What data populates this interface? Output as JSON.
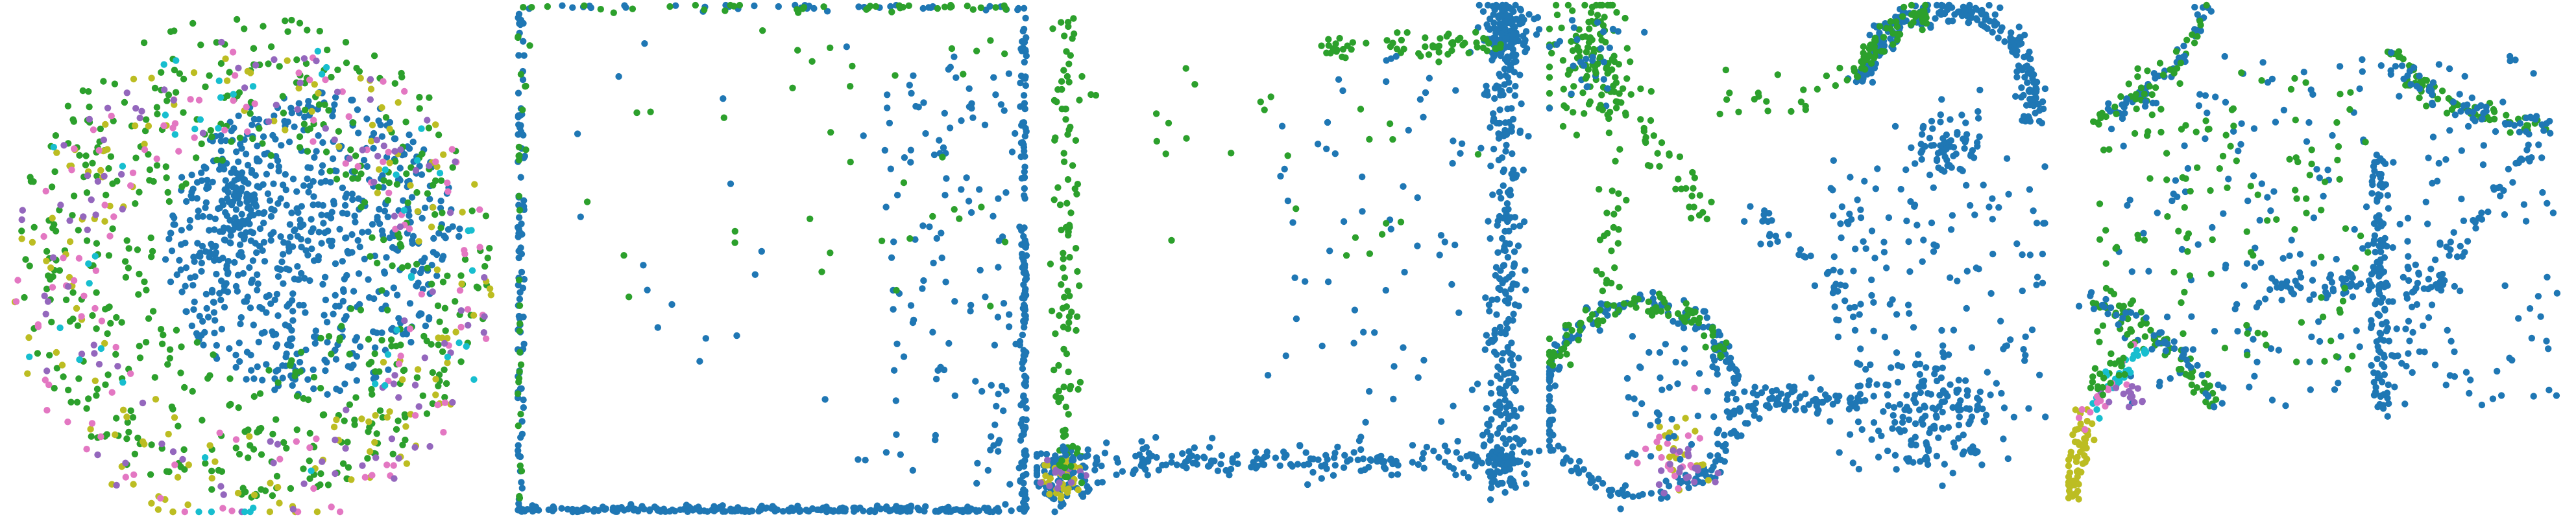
{
  "chart_data": [
    {
      "type": "scatter",
      "title": "",
      "xlabel": "",
      "ylabel": "",
      "axes": "hidden",
      "grid": false,
      "legend": "none",
      "shape": "filled disk",
      "series_colors": {
        "blue": "#1f77b4",
        "green": "#2ca02c",
        "olive": "#bcbd22",
        "pink": "#e377c2",
        "purple": "#9467bd",
        "cyan": "#17becf"
      },
      "clusters": [
        {
          "color": "blue",
          "kind": "disk",
          "cx": 0.62,
          "cy": 0.47,
          "r": 0.3,
          "n": 650
        },
        {
          "color": "green",
          "kind": "annulus",
          "cx": 0.5,
          "cy": 0.5,
          "r0": 0.2,
          "r1": 0.48,
          "n": 520
        },
        {
          "color": "olive",
          "kind": "annulus",
          "cx": 0.5,
          "cy": 0.55,
          "r0": 0.3,
          "r1": 0.49,
          "n": 150
        },
        {
          "color": "pink",
          "kind": "annulus",
          "cx": 0.5,
          "cy": 0.55,
          "r0": 0.3,
          "r1": 0.49,
          "n": 120
        },
        {
          "color": "purple",
          "kind": "annulus",
          "cx": 0.5,
          "cy": 0.55,
          "r0": 0.3,
          "r1": 0.49,
          "n": 110
        },
        {
          "color": "cyan",
          "kind": "annulus",
          "cx": 0.5,
          "cy": 0.55,
          "r0": 0.3,
          "r1": 0.49,
          "n": 50
        },
        {
          "color": "blue",
          "kind": "blob",
          "cx": 0.47,
          "cy": 0.42,
          "sx": 0.03,
          "sy": 0.07,
          "n": 90
        }
      ]
    },
    {
      "type": "scatter",
      "title": "",
      "xlabel": "",
      "ylabel": "",
      "axes": "hidden",
      "grid": false,
      "legend": "none",
      "clusters": [
        {
          "color": "blue",
          "kind": "edge",
          "side": "bottom",
          "n": 260
        },
        {
          "color": "blue",
          "kind": "edge",
          "side": "right",
          "n": 160
        },
        {
          "color": "blue",
          "kind": "edge",
          "side": "left",
          "n": 90
        },
        {
          "color": "blue",
          "kind": "edge",
          "side": "top",
          "n": 40
        },
        {
          "color": "green",
          "kind": "edge",
          "side": "top",
          "n": 40
        },
        {
          "color": "green",
          "kind": "edge",
          "side": "left",
          "n": 30
        },
        {
          "color": "blue",
          "kind": "box",
          "x0": 0.72,
          "x1": 0.98,
          "y0": 0.1,
          "y1": 0.95,
          "n": 120
        },
        {
          "color": "green",
          "kind": "box",
          "x0": 0.55,
          "x1": 0.98,
          "y0": 0.05,
          "y1": 0.6,
          "n": 25
        },
        {
          "color": "green",
          "kind": "box",
          "x0": 0.05,
          "x1": 0.6,
          "y0": 0.05,
          "y1": 0.6,
          "n": 12
        },
        {
          "color": "blue",
          "kind": "box",
          "x0": 0.05,
          "x1": 0.7,
          "y0": 0.05,
          "y1": 0.95,
          "n": 20
        }
      ]
    },
    {
      "type": "scatter",
      "title": "",
      "xlabel": "",
      "ylabel": "",
      "axes": "hidden",
      "grid": false,
      "legend": "none",
      "clusters": [
        {
          "color": "blue",
          "kind": "blob",
          "cx": 0.935,
          "cy": 0.05,
          "sx": 0.025,
          "sy": 0.03,
          "n": 130
        },
        {
          "color": "blue",
          "kind": "blob",
          "cx": 0.05,
          "cy": 0.93,
          "sx": 0.03,
          "sy": 0.03,
          "n": 90
        },
        {
          "color": "olive",
          "kind": "blob",
          "cx": 0.05,
          "cy": 0.93,
          "sx": 0.02,
          "sy": 0.02,
          "n": 30
        },
        {
          "color": "purple",
          "kind": "blob",
          "cx": 0.05,
          "cy": 0.93,
          "sx": 0.02,
          "sy": 0.02,
          "n": 15
        },
        {
          "color": "blue",
          "kind": "blob",
          "cx": 0.93,
          "cy": 0.9,
          "sx": 0.03,
          "sy": 0.03,
          "n": 60
        },
        {
          "color": "blue",
          "kind": "vline",
          "x": 0.93,
          "y0": 0.05,
          "y1": 0.95,
          "w": 0.035,
          "n": 260
        },
        {
          "color": "green",
          "kind": "vline",
          "x": 0.06,
          "y0": 0.02,
          "y1": 0.95,
          "w": 0.03,
          "n": 110
        },
        {
          "color": "blue",
          "kind": "hline",
          "y": 0.9,
          "x0": 0.05,
          "x1": 0.95,
          "w": 0.035,
          "n": 200
        },
        {
          "color": "green",
          "kind": "hline",
          "y": 0.08,
          "x0": 0.55,
          "x1": 0.93,
          "w": 0.03,
          "n": 60
        },
        {
          "color": "blue",
          "kind": "box",
          "x0": 0.45,
          "x1": 0.9,
          "y0": 0.1,
          "y1": 0.85,
          "n": 70
        },
        {
          "color": "green",
          "kind": "box",
          "x0": 0.08,
          "x1": 0.9,
          "y0": 0.05,
          "y1": 0.5,
          "n": 30
        }
      ]
    },
    {
      "type": "scatter",
      "title": "",
      "xlabel": "",
      "ylabel": "",
      "axes": "hidden",
      "grid": false,
      "legend": "none",
      "clusters": [
        {
          "color": "blue",
          "kind": "ring",
          "cx": 0.78,
          "cy": 0.18,
          "r": 0.17,
          "a0": 3.3,
          "a1": 6.6,
          "w": 0.012,
          "n": 240
        },
        {
          "color": "green",
          "kind": "ring",
          "cx": 0.78,
          "cy": 0.18,
          "r": 0.17,
          "a0": 3.3,
          "a1": 4.5,
          "w": 0.012,
          "n": 60
        },
        {
          "color": "blue",
          "kind": "ring",
          "cx": 0.18,
          "cy": 0.78,
          "r": 0.19,
          "a0": 0,
          "a1": 6.283,
          "w": 0.012,
          "n": 240
        },
        {
          "color": "green",
          "kind": "ring",
          "cx": 0.18,
          "cy": 0.78,
          "r": 0.19,
          "a0": 3.5,
          "a1": 5.8,
          "w": 0.012,
          "n": 80
        },
        {
          "color": "olive",
          "kind": "blob",
          "cx": 0.25,
          "cy": 0.88,
          "sx": 0.03,
          "sy": 0.03,
          "n": 20
        },
        {
          "color": "pink",
          "kind": "blob",
          "cx": 0.25,
          "cy": 0.88,
          "sx": 0.04,
          "sy": 0.04,
          "n": 18
        },
        {
          "color": "purple",
          "kind": "blob",
          "cx": 0.26,
          "cy": 0.92,
          "sx": 0.03,
          "sy": 0.02,
          "n": 20
        },
        {
          "color": "blue",
          "kind": "box",
          "x0": 0.15,
          "x1": 0.33,
          "y0": 0.65,
          "y1": 0.9,
          "n": 40
        },
        {
          "color": "blue",
          "kind": "blob",
          "cx": 0.78,
          "cy": 0.27,
          "sx": 0.04,
          "sy": 0.03,
          "n": 70
        },
        {
          "color": "blue",
          "kind": "blob",
          "cx": 0.75,
          "cy": 0.8,
          "sx": 0.06,
          "sy": 0.05,
          "n": 120
        },
        {
          "color": "blue",
          "kind": "diag",
          "x0": 0.38,
          "y0": 0.78,
          "x1": 0.62,
          "y1": 0.78,
          "w": 0.03,
          "n": 70
        },
        {
          "color": "blue",
          "kind": "box",
          "x0": 0.55,
          "x1": 0.98,
          "y0": 0.3,
          "y1": 0.92,
          "n": 180
        },
        {
          "color": "green",
          "kind": "blob",
          "cx": 0.08,
          "cy": 0.1,
          "sx": 0.04,
          "sy": 0.06,
          "n": 110
        },
        {
          "color": "blue",
          "kind": "blob",
          "cx": 0.08,
          "cy": 0.1,
          "sx": 0.04,
          "sy": 0.06,
          "n": 30
        },
        {
          "color": "green",
          "kind": "diag",
          "x0": 0.08,
          "y0": 0.1,
          "x1": 0.3,
          "y1": 0.4,
          "w": 0.04,
          "n": 50
        },
        {
          "color": "green",
          "kind": "vline",
          "x": 0.12,
          "y0": 0.2,
          "y1": 0.6,
          "w": 0.03,
          "n": 30
        },
        {
          "color": "blue",
          "kind": "diag",
          "x0": 0.4,
          "y0": 0.4,
          "x1": 0.62,
          "y1": 0.62,
          "w": 0.04,
          "n": 40
        },
        {
          "color": "green",
          "kind": "box",
          "x0": 0.3,
          "x1": 0.6,
          "y0": 0.12,
          "y1": 0.22,
          "n": 20
        }
      ]
    },
    {
      "type": "scatter",
      "title": "",
      "xlabel": "",
      "ylabel": "",
      "axes": "hidden",
      "grid": false,
      "legend": "none",
      "clusters": [
        {
          "color": "blue",
          "kind": "arc",
          "x0": 0.04,
          "y0": 0.22,
          "cx": 0.18,
          "cy": 0.2,
          "x1": 0.28,
          "y1": 0.0,
          "w": 0.01,
          "n": 50
        },
        {
          "color": "green",
          "kind": "arc",
          "x0": 0.04,
          "y0": 0.22,
          "cx": 0.18,
          "cy": 0.2,
          "x1": 0.28,
          "y1": 0.0,
          "w": 0.01,
          "n": 30
        },
        {
          "color": "green",
          "kind": "arc",
          "x0": 0.64,
          "y0": 0.09,
          "cx": 0.72,
          "cy": 0.22,
          "x1": 0.96,
          "y1": 0.24,
          "w": 0.012,
          "n": 70
        },
        {
          "color": "blue",
          "kind": "arc",
          "x0": 0.64,
          "y0": 0.09,
          "cx": 0.72,
          "cy": 0.22,
          "x1": 0.96,
          "y1": 0.24,
          "w": 0.012,
          "n": 50
        },
        {
          "color": "blue",
          "kind": "arc",
          "x0": 0.96,
          "y0": 0.24,
          "cx": 0.75,
          "cy": 0.45,
          "x1": 0.62,
          "y1": 0.82,
          "w": 0.012,
          "n": 60
        },
        {
          "color": "green",
          "kind": "arc",
          "x0": 0.04,
          "y0": 0.58,
          "cx": 0.18,
          "cy": 0.62,
          "x1": 0.3,
          "y1": 0.8,
          "w": 0.012,
          "n": 60
        },
        {
          "color": "blue",
          "kind": "arc",
          "x0": 0.04,
          "y0": 0.58,
          "cx": 0.18,
          "cy": 0.62,
          "x1": 0.3,
          "y1": 0.8,
          "w": 0.012,
          "n": 40
        },
        {
          "color": "blue",
          "kind": "vline",
          "x": 0.62,
          "y0": 0.3,
          "y1": 0.8,
          "w": 0.02,
          "n": 110
        },
        {
          "color": "blue",
          "kind": "hline",
          "y": 0.55,
          "x0": 0.4,
          "x1": 0.75,
          "w": 0.03,
          "n": 70
        },
        {
          "color": "blue",
          "kind": "box",
          "x0": 0.08,
          "x1": 0.98,
          "y0": 0.1,
          "y1": 0.8,
          "n": 240
        },
        {
          "color": "green",
          "kind": "box",
          "x0": 0.05,
          "x1": 0.6,
          "y0": 0.12,
          "y1": 0.75,
          "n": 140
        },
        {
          "color": "olive",
          "kind": "diag",
          "x0": 0.0,
          "y0": 0.98,
          "x1": 0.04,
          "y1": 0.8,
          "w": 0.02,
          "n": 60
        },
        {
          "color": "cyan",
          "kind": "diag",
          "x0": 0.05,
          "y0": 0.8,
          "x1": 0.15,
          "y1": 0.68,
          "w": 0.02,
          "n": 30
        },
        {
          "color": "pink",
          "kind": "diag",
          "x0": 0.02,
          "y0": 0.85,
          "x1": 0.12,
          "y1": 0.7,
          "w": 0.03,
          "n": 14
        },
        {
          "color": "purple",
          "kind": "blob",
          "cx": 0.12,
          "cy": 0.77,
          "sx": 0.02,
          "sy": 0.02,
          "n": 14
        },
        {
          "color": "green",
          "kind": "diag",
          "x0": 0.05,
          "y0": 0.76,
          "x1": 0.12,
          "y1": 0.68,
          "w": 0.02,
          "n": 20
        }
      ]
    }
  ]
}
